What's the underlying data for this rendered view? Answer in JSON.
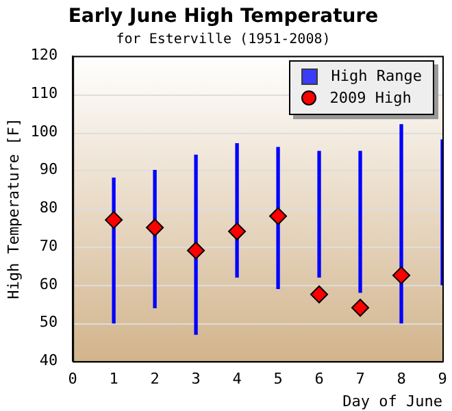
{
  "chart_data": {
    "type": "scatter",
    "title": "Early June High Temperature",
    "subtitle": "for Esterville (1951-2008)",
    "xlabel": "Day of June",
    "ylabel": "High Temperature [F]",
    "xlim": [
      0,
      9
    ],
    "xticks": [
      0,
      1,
      2,
      3,
      4,
      5,
      6,
      7,
      8,
      9
    ],
    "ylim": [
      40,
      120
    ],
    "yticks": [
      40,
      50,
      60,
      70,
      80,
      90,
      100,
      110,
      120
    ],
    "grid": "y",
    "legend": "top right",
    "series": [
      {
        "type": "bar",
        "name": "High Range",
        "color": "#0000ff",
        "x": [
          1,
          2,
          3,
          4,
          5,
          6,
          7,
          8,
          9
        ],
        "base": [
          50,
          54,
          47,
          62,
          59,
          62,
          58,
          50,
          60
        ],
        "values": [
          38,
          36,
          47,
          35,
          37,
          33,
          37,
          52,
          38
        ]
      },
      {
        "name": "2009 High",
        "color": "#ff0000",
        "marker": "diamond",
        "x": [
          1,
          2,
          3,
          4,
          5,
          6,
          7,
          8
        ],
        "values": [
          77,
          75,
          69,
          74,
          78,
          57.5,
          54,
          62.5
        ]
      }
    ]
  }
}
